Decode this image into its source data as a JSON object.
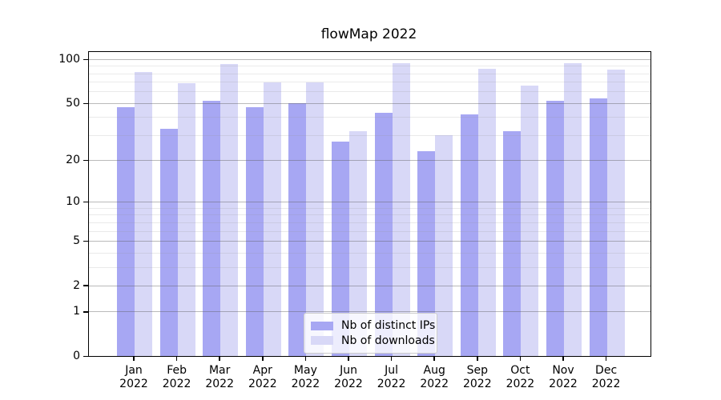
{
  "title": "flowMap 2022",
  "chart_data": {
    "type": "bar",
    "title": "flowMap 2022",
    "categories": [
      "Jan",
      "Feb",
      "Mar",
      "Apr",
      "May",
      "Jun",
      "Jul",
      "Aug",
      "Sep",
      "Oct",
      "Nov",
      "Dec"
    ],
    "year": "2022",
    "series": [
      {
        "name": "Nb of distinct IPs",
        "color": "#a7a7f3",
        "values": [
          47,
          33,
          52,
          47,
          50,
          27,
          43,
          23,
          42,
          32,
          52,
          54
        ]
      },
      {
        "name": "Nb of downloads",
        "color": "#d8d8f7",
        "values": [
          82,
          68,
          92,
          69,
          69,
          32,
          94,
          30,
          86,
          66,
          94,
          85
        ]
      }
    ],
    "xlabel": "",
    "ylabel": "",
    "yscale": "log1p",
    "yticks": [
      0,
      1,
      2,
      5,
      10,
      20,
      50,
      100
    ],
    "yminorticks": [
      3,
      4,
      6,
      7,
      8,
      9,
      30,
      40,
      60,
      70,
      80,
      90
    ],
    "ylim": [
      0,
      112
    ],
    "grid": true,
    "legend_position": "lower center"
  }
}
